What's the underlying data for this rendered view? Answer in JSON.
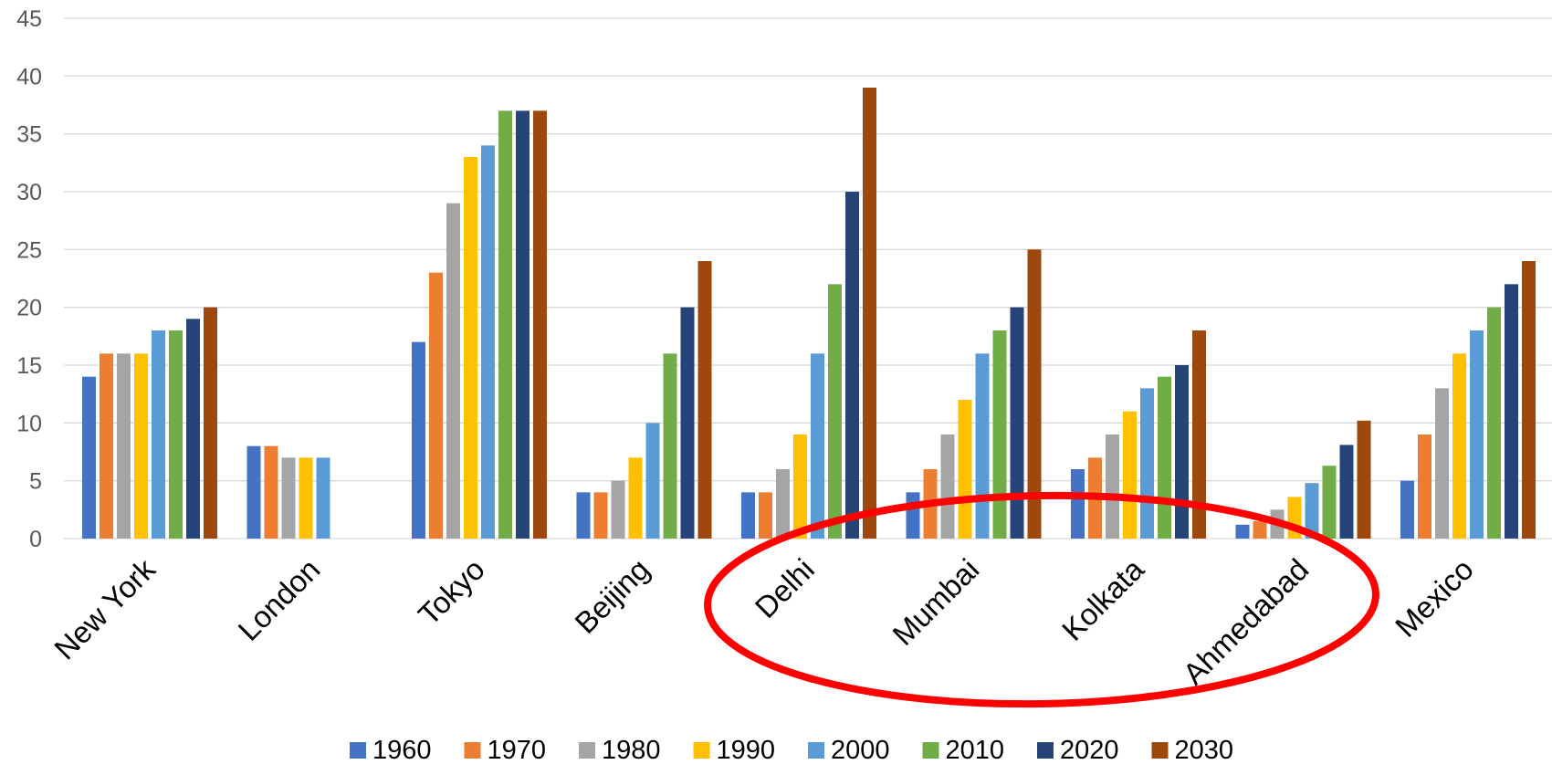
{
  "chart_data": {
    "type": "bar",
    "title": "",
    "xlabel": "",
    "ylabel": "",
    "ylim": [
      0,
      45
    ],
    "yticks": [
      0,
      5,
      10,
      15,
      20,
      25,
      30,
      35,
      40,
      45
    ],
    "grid": true,
    "legend_position": "bottom",
    "categories": [
      "New York",
      "London",
      "Tokyo",
      "Beijing",
      "Delhi",
      "Mumbai",
      "Kolkata",
      "Ahmedabad",
      "Mexico"
    ],
    "series": [
      {
        "name": "1960",
        "color": "#4472C4",
        "values": [
          14,
          8,
          17,
          4,
          4,
          4,
          6,
          1.2,
          5
        ]
      },
      {
        "name": "1970",
        "color": "#ED7D31",
        "values": [
          16,
          8,
          23,
          4,
          4,
          6,
          7,
          1.5,
          9
        ]
      },
      {
        "name": "1980",
        "color": "#A5A5A5",
        "values": [
          16,
          7,
          29,
          5,
          6,
          9,
          9,
          2.5,
          13
        ]
      },
      {
        "name": "1990",
        "color": "#FFC000",
        "values": [
          16,
          7,
          33,
          7,
          9,
          12,
          11,
          3.6,
          16
        ]
      },
      {
        "name": "2000",
        "color": "#5B9BD5",
        "values": [
          18,
          7,
          34,
          10,
          16,
          16,
          13,
          4.8,
          18
        ]
      },
      {
        "name": "2010",
        "color": "#70AD47",
        "values": [
          18,
          null,
          37,
          16,
          22,
          18,
          14,
          6.3,
          20
        ]
      },
      {
        "name": "2020",
        "color": "#264478",
        "values": [
          19,
          null,
          37,
          20,
          30,
          20,
          15,
          8.1,
          22
        ]
      },
      {
        "name": "2030",
        "color": "#9E480E",
        "values": [
          20,
          null,
          37,
          24,
          39,
          25,
          18,
          10.2,
          24
        ]
      }
    ],
    "annotation": {
      "shape": "ellipse",
      "color": "#FF0000",
      "encircles": [
        "Delhi",
        "Mumbai",
        "Kolkata",
        "Ahmedabad"
      ]
    }
  }
}
